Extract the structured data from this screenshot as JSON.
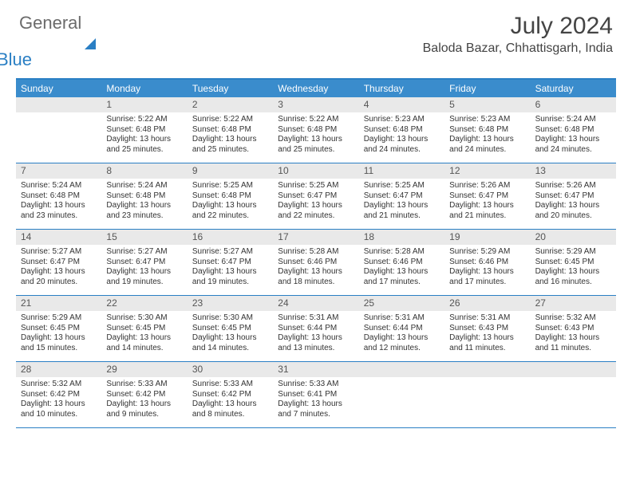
{
  "logo": {
    "general": "General",
    "blue": "Blue"
  },
  "title": "July 2024",
  "location": "Baloda Bazar, Chhattisgarh, India",
  "colors": {
    "accent": "#2a7fc4",
    "header_bg": "#3a8ccc",
    "daynum_bg": "#e9e9e9",
    "text": "#333333",
    "muted": "#6b6b6b"
  },
  "dow": [
    "Sunday",
    "Monday",
    "Tuesday",
    "Wednesday",
    "Thursday",
    "Friday",
    "Saturday"
  ],
  "weeks": [
    [
      {
        "n": "",
        "sr": "",
        "ss": "",
        "dl": ""
      },
      {
        "n": "1",
        "sr": "Sunrise: 5:22 AM",
        "ss": "Sunset: 6:48 PM",
        "dl": "Daylight: 13 hours and 25 minutes."
      },
      {
        "n": "2",
        "sr": "Sunrise: 5:22 AM",
        "ss": "Sunset: 6:48 PM",
        "dl": "Daylight: 13 hours and 25 minutes."
      },
      {
        "n": "3",
        "sr": "Sunrise: 5:22 AM",
        "ss": "Sunset: 6:48 PM",
        "dl": "Daylight: 13 hours and 25 minutes."
      },
      {
        "n": "4",
        "sr": "Sunrise: 5:23 AM",
        "ss": "Sunset: 6:48 PM",
        "dl": "Daylight: 13 hours and 24 minutes."
      },
      {
        "n": "5",
        "sr": "Sunrise: 5:23 AM",
        "ss": "Sunset: 6:48 PM",
        "dl": "Daylight: 13 hours and 24 minutes."
      },
      {
        "n": "6",
        "sr": "Sunrise: 5:24 AM",
        "ss": "Sunset: 6:48 PM",
        "dl": "Daylight: 13 hours and 24 minutes."
      }
    ],
    [
      {
        "n": "7",
        "sr": "Sunrise: 5:24 AM",
        "ss": "Sunset: 6:48 PM",
        "dl": "Daylight: 13 hours and 23 minutes."
      },
      {
        "n": "8",
        "sr": "Sunrise: 5:24 AM",
        "ss": "Sunset: 6:48 PM",
        "dl": "Daylight: 13 hours and 23 minutes."
      },
      {
        "n": "9",
        "sr": "Sunrise: 5:25 AM",
        "ss": "Sunset: 6:48 PM",
        "dl": "Daylight: 13 hours and 22 minutes."
      },
      {
        "n": "10",
        "sr": "Sunrise: 5:25 AM",
        "ss": "Sunset: 6:47 PM",
        "dl": "Daylight: 13 hours and 22 minutes."
      },
      {
        "n": "11",
        "sr": "Sunrise: 5:25 AM",
        "ss": "Sunset: 6:47 PM",
        "dl": "Daylight: 13 hours and 21 minutes."
      },
      {
        "n": "12",
        "sr": "Sunrise: 5:26 AM",
        "ss": "Sunset: 6:47 PM",
        "dl": "Daylight: 13 hours and 21 minutes."
      },
      {
        "n": "13",
        "sr": "Sunrise: 5:26 AM",
        "ss": "Sunset: 6:47 PM",
        "dl": "Daylight: 13 hours and 20 minutes."
      }
    ],
    [
      {
        "n": "14",
        "sr": "Sunrise: 5:27 AM",
        "ss": "Sunset: 6:47 PM",
        "dl": "Daylight: 13 hours and 20 minutes."
      },
      {
        "n": "15",
        "sr": "Sunrise: 5:27 AM",
        "ss": "Sunset: 6:47 PM",
        "dl": "Daylight: 13 hours and 19 minutes."
      },
      {
        "n": "16",
        "sr": "Sunrise: 5:27 AM",
        "ss": "Sunset: 6:47 PM",
        "dl": "Daylight: 13 hours and 19 minutes."
      },
      {
        "n": "17",
        "sr": "Sunrise: 5:28 AM",
        "ss": "Sunset: 6:46 PM",
        "dl": "Daylight: 13 hours and 18 minutes."
      },
      {
        "n": "18",
        "sr": "Sunrise: 5:28 AM",
        "ss": "Sunset: 6:46 PM",
        "dl": "Daylight: 13 hours and 17 minutes."
      },
      {
        "n": "19",
        "sr": "Sunrise: 5:29 AM",
        "ss": "Sunset: 6:46 PM",
        "dl": "Daylight: 13 hours and 17 minutes."
      },
      {
        "n": "20",
        "sr": "Sunrise: 5:29 AM",
        "ss": "Sunset: 6:45 PM",
        "dl": "Daylight: 13 hours and 16 minutes."
      }
    ],
    [
      {
        "n": "21",
        "sr": "Sunrise: 5:29 AM",
        "ss": "Sunset: 6:45 PM",
        "dl": "Daylight: 13 hours and 15 minutes."
      },
      {
        "n": "22",
        "sr": "Sunrise: 5:30 AM",
        "ss": "Sunset: 6:45 PM",
        "dl": "Daylight: 13 hours and 14 minutes."
      },
      {
        "n": "23",
        "sr": "Sunrise: 5:30 AM",
        "ss": "Sunset: 6:45 PM",
        "dl": "Daylight: 13 hours and 14 minutes."
      },
      {
        "n": "24",
        "sr": "Sunrise: 5:31 AM",
        "ss": "Sunset: 6:44 PM",
        "dl": "Daylight: 13 hours and 13 minutes."
      },
      {
        "n": "25",
        "sr": "Sunrise: 5:31 AM",
        "ss": "Sunset: 6:44 PM",
        "dl": "Daylight: 13 hours and 12 minutes."
      },
      {
        "n": "26",
        "sr": "Sunrise: 5:31 AM",
        "ss": "Sunset: 6:43 PM",
        "dl": "Daylight: 13 hours and 11 minutes."
      },
      {
        "n": "27",
        "sr": "Sunrise: 5:32 AM",
        "ss": "Sunset: 6:43 PM",
        "dl": "Daylight: 13 hours and 11 minutes."
      }
    ],
    [
      {
        "n": "28",
        "sr": "Sunrise: 5:32 AM",
        "ss": "Sunset: 6:42 PM",
        "dl": "Daylight: 13 hours and 10 minutes."
      },
      {
        "n": "29",
        "sr": "Sunrise: 5:33 AM",
        "ss": "Sunset: 6:42 PM",
        "dl": "Daylight: 13 hours and 9 minutes."
      },
      {
        "n": "30",
        "sr": "Sunrise: 5:33 AM",
        "ss": "Sunset: 6:42 PM",
        "dl": "Daylight: 13 hours and 8 minutes."
      },
      {
        "n": "31",
        "sr": "Sunrise: 5:33 AM",
        "ss": "Sunset: 6:41 PM",
        "dl": "Daylight: 13 hours and 7 minutes."
      },
      {
        "n": "",
        "sr": "",
        "ss": "",
        "dl": ""
      },
      {
        "n": "",
        "sr": "",
        "ss": "",
        "dl": ""
      },
      {
        "n": "",
        "sr": "",
        "ss": "",
        "dl": ""
      }
    ]
  ]
}
